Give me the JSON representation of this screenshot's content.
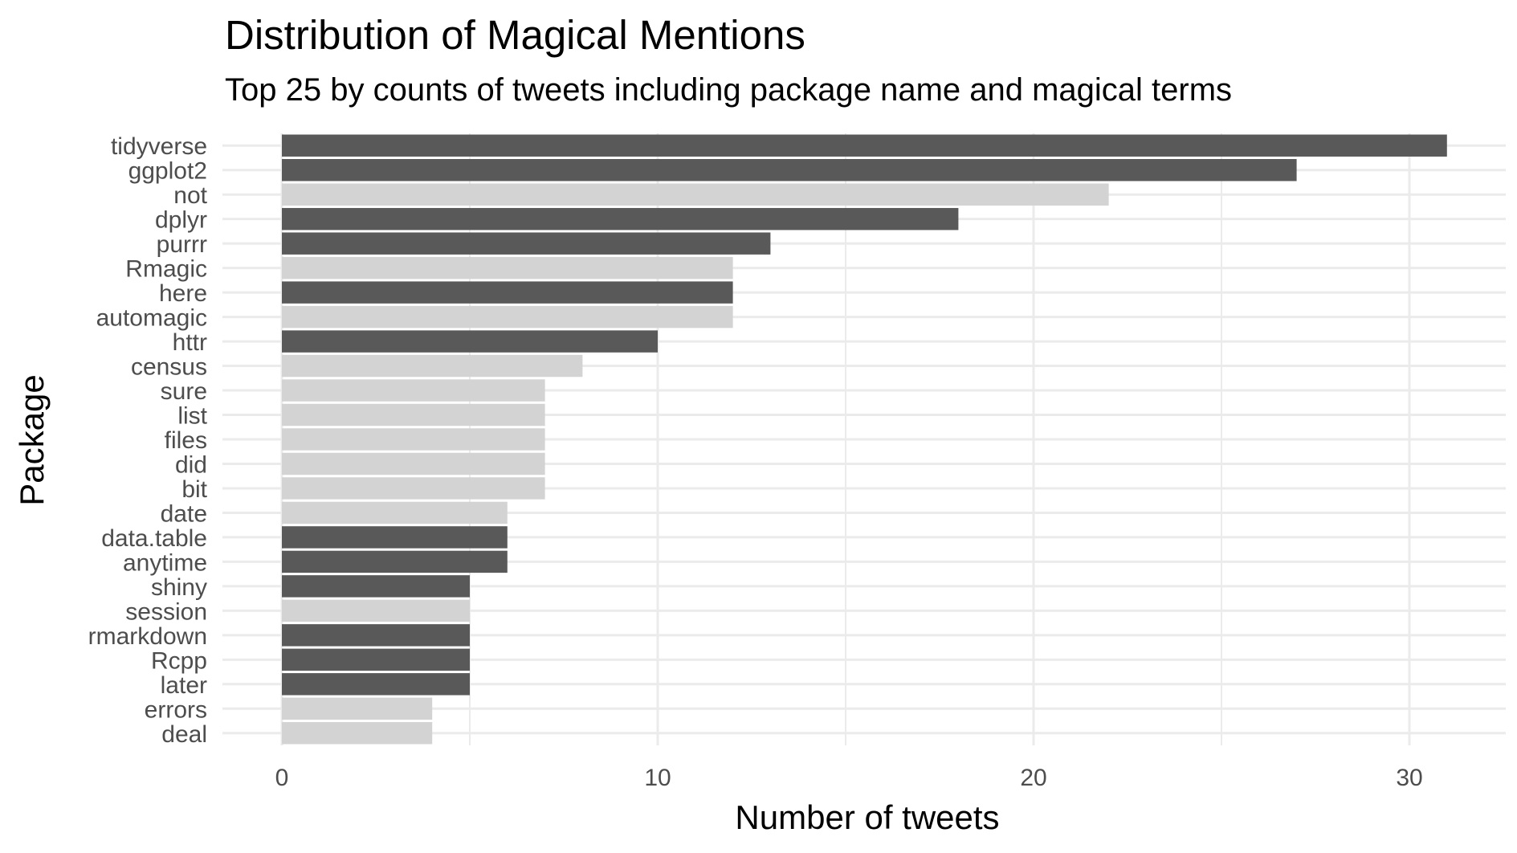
{
  "chart_data": {
    "type": "bar",
    "orientation": "horizontal",
    "title": "Distribution of Magical Mentions",
    "subtitle": "Top 25 by counts of tweets including package name and magical terms",
    "xlabel": "Number of tweets",
    "ylabel": "Package",
    "xlim": [
      0,
      32
    ],
    "x_ticks": [
      "0",
      "10",
      "20",
      "30"
    ],
    "x_tick_values": [
      0,
      10,
      20,
      30
    ],
    "grid": true,
    "categories": [
      "tidyverse",
      "ggplot2",
      "not",
      "dplyr",
      "purrr",
      "Rmagic",
      "here",
      "automagic",
      "httr",
      "census",
      "sure",
      "list",
      "files",
      "did",
      "bit",
      "date",
      "data.table",
      "anytime",
      "shiny",
      "session",
      "rmarkdown",
      "Rcpp",
      "later",
      "errors",
      "deal"
    ],
    "values": [
      31,
      27,
      22,
      18,
      13,
      12,
      12,
      12,
      10,
      8,
      7,
      7,
      7,
      7,
      7,
      6,
      6,
      6,
      5,
      5,
      5,
      5,
      5,
      4,
      4
    ],
    "bar_shade": [
      "dark",
      "dark",
      "light",
      "dark",
      "dark",
      "light",
      "dark",
      "light",
      "dark",
      "light",
      "light",
      "light",
      "light",
      "light",
      "light",
      "light",
      "dark",
      "dark",
      "dark",
      "light",
      "dark",
      "dark",
      "dark",
      "light",
      "light"
    ],
    "colors": {
      "dark": "#595959",
      "light": "#d3d3d3",
      "grid": "#ebebeb"
    }
  }
}
